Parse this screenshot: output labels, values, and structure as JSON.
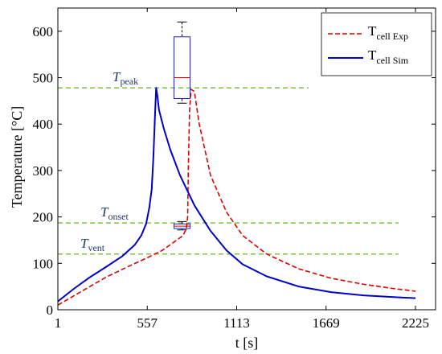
{
  "chart_data": {
    "type": "line",
    "xlabel": "t [s]",
    "ylabel": "Temperature [°C]",
    "xlim": [
      1,
      2350
    ],
    "ylim": [
      0,
      650
    ],
    "xticks": [
      1,
      557,
      1113,
      1669,
      2225
    ],
    "yticks": [
      0,
      100,
      200,
      300,
      400,
      500,
      600
    ],
    "grid": false,
    "legend_position": "top-right",
    "series": [
      {
        "name_main": "T",
        "name_sub": "cell Exp",
        "color": "#e00000",
        "dash": "dashed",
        "x": [
          1,
          150,
          300,
          450,
          557,
          650,
          720,
          780,
          800,
          808,
          812,
          820,
          830,
          850,
          880,
          950,
          1050,
          1150,
          1300,
          1500,
          1700,
          1900,
          2100,
          2225
        ],
        "y": [
          10,
          40,
          70,
          95,
          112,
          128,
          145,
          160,
          175,
          200,
          300,
          430,
          475,
          470,
          400,
          290,
          210,
          160,
          120,
          88,
          68,
          55,
          45,
          40
        ]
      },
      {
        "name_main": "T",
        "name_sub": "cell Sim",
        "color": "#0000cc",
        "dash": "solid",
        "x": [
          1,
          100,
          200,
          300,
          400,
          480,
          520,
          550,
          570,
          585,
          595,
          605,
          612,
          620,
          630,
          660,
          700,
          760,
          850,
          950,
          1050,
          1150,
          1300,
          1500,
          1700,
          1900,
          2100,
          2225
        ],
        "y": [
          18,
          45,
          70,
          92,
          115,
          140,
          160,
          185,
          220,
          260,
          330,
          420,
          478,
          460,
          430,
          390,
          345,
          290,
          225,
          170,
          128,
          98,
          72,
          50,
          38,
          31,
          27,
          25
        ]
      }
    ],
    "reference_lines": [
      {
        "label_main": "T",
        "label_sub": "peak",
        "y": 478,
        "x_start": 1,
        "x_end": 1560,
        "color": "#7dc341"
      },
      {
        "label_main": "T",
        "label_sub": "onset",
        "y": 187,
        "x_start": 1,
        "x_end": 2120,
        "color": "#7dc341"
      },
      {
        "label_main": "T",
        "label_sub": "vent",
        "y": 120,
        "x_start": 1,
        "x_end": 2120,
        "color": "#7dc341"
      }
    ],
    "boxplots": [
      {
        "x": 773,
        "min": 445,
        "q1": 455,
        "median": 500,
        "q3": 588,
        "max": 620
      },
      {
        "x": 773,
        "min": 172,
        "q1": 175,
        "median": 180,
        "q3": 185,
        "max": 190
      }
    ]
  }
}
